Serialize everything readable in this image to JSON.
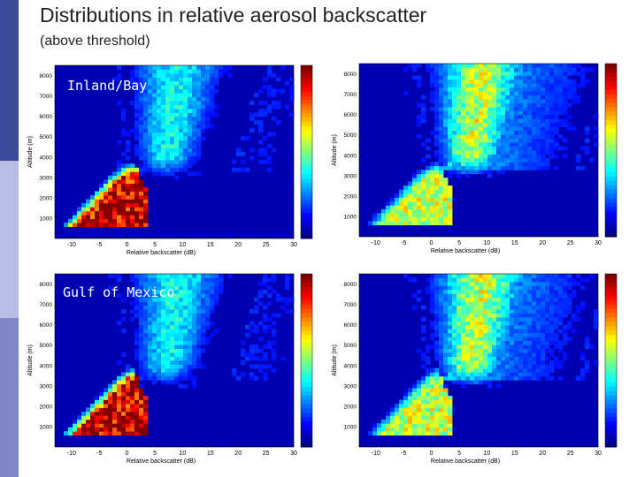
{
  "slide": {
    "title": "Distributions in relative aerosol backscatter",
    "subtitle": "(above threshold)",
    "panel_labels": [
      "Inland/Bay",
      "Gulf of Mexico"
    ]
  },
  "colors": {
    "accent_dark": "#3c4a9c",
    "accent_light": "#b7bde4",
    "accent_mid": "#7e88c8",
    "colormap": "jet"
  },
  "chart_data": [
    {
      "type": "heatmap",
      "title": "",
      "annotation": "Inland/Bay",
      "xlabel": "Relative backscatter (dB)",
      "ylabel": "Altitude (m)",
      "xlim": [
        -13,
        30
      ],
      "ylim": [
        0,
        8500
      ],
      "xticks": [
        "-10",
        "-5",
        "0",
        "5",
        "10",
        "15",
        "20",
        "25",
        "30"
      ],
      "yticks": [
        "1000",
        "2000",
        "3000",
        "4000",
        "5000",
        "6000",
        "7000",
        "8000"
      ],
      "colorbar": {
        "min": 0,
        "max": 2.3,
        "ticks": [
          "0",
          "0.5",
          "1",
          "1.5",
          "2"
        ]
      },
      "peak_hot_region": "x ≈ -10 to 3 dB, altitude ≈ 800 to 3000 m"
    },
    {
      "type": "heatmap",
      "title": "",
      "annotation": "",
      "xlabel": "Relative backscatter (dB)",
      "ylabel": "Altitude (m)",
      "xlim": [
        -13,
        30
      ],
      "ylim": [
        0,
        8500
      ],
      "xticks": [
        "-10",
        "-5",
        "0",
        "5",
        "10",
        "15",
        "20",
        "25",
        "30"
      ],
      "yticks": [
        "1000",
        "2000",
        "3000",
        "4000",
        "5000",
        "6000",
        "7000",
        "8000"
      ],
      "colorbar": {
        "min": 0,
        "max": 1,
        "ticks": [
          "0",
          "0.1",
          "0.2",
          "0.3",
          "0.4",
          "0.5",
          "0.6",
          "0.7",
          "0.8",
          "0.9",
          "1"
        ]
      },
      "peak_hot_region": "x ≈ -5 to 3 dB, altitude ≈ 900 to 2000 m; upper plume x ≈ 5 to 12 dB"
    },
    {
      "type": "heatmap",
      "title": "",
      "annotation": "Gulf of Mexico",
      "xlabel": "Relative backscatter (dB)",
      "ylabel": "Altitude (m)",
      "xlim": [
        -13,
        30
      ],
      "ylim": [
        0,
        8500
      ],
      "xticks": [
        "-10",
        "-5",
        "0",
        "5",
        "10",
        "15",
        "20",
        "25",
        "30"
      ],
      "yticks": [
        "1000",
        "2000",
        "3000",
        "4000",
        "5000",
        "6000",
        "7000",
        "8000"
      ],
      "colorbar": {
        "min": 0,
        "max": 2.3,
        "ticks": [
          "0",
          "0.5",
          "1",
          "1.5",
          "2"
        ]
      },
      "peak_hot_region": "x ≈ -10 to 3 dB, altitude ≈ 800 to 3200 m"
    },
    {
      "type": "heatmap",
      "title": "",
      "annotation": "",
      "xlabel": "Relative backscatter (dB)",
      "ylabel": "Altitude (m)",
      "xlim": [
        -13,
        30
      ],
      "ylim": [
        0,
        8500
      ],
      "xticks": [
        "-10",
        "-5",
        "0",
        "5",
        "10",
        "15",
        "20",
        "25",
        "30"
      ],
      "yticks": [
        "1000",
        "2000",
        "3000",
        "4000",
        "5000",
        "6000",
        "7000",
        "8000"
      ],
      "colorbar": {
        "min": 0,
        "max": 1,
        "ticks": [
          "0",
          "0.1",
          "0.2",
          "0.3",
          "0.4",
          "0.5",
          "0.6",
          "0.7",
          "0.8",
          "0.9",
          "1"
        ]
      },
      "peak_hot_region": "x ≈ -6 to 3 dB, altitude ≈ 900 to 2600 m; upper plume x ≈ 5 to 12 dB"
    }
  ]
}
